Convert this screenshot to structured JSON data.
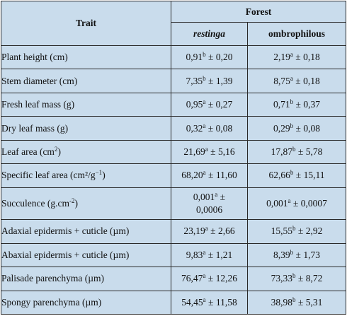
{
  "header": {
    "trait": "Trait",
    "forest": "Forest",
    "restinga": "restinga",
    "ombrophilous": "ombrophilous"
  },
  "rows": [
    {
      "trait": {
        "pre": "Plant height (cm)",
        "sup": "",
        "post": ""
      },
      "restinga": {
        "val": "0,91",
        "sup": "b",
        "err": " ± 0,20"
      },
      "ombrophilous": {
        "val": "2,19",
        "sup": "a",
        "err": " ± 0,18"
      }
    },
    {
      "trait": {
        "pre": "Stem diameter (cm)",
        "sup": "",
        "post": ""
      },
      "restinga": {
        "val": "7,35",
        "sup": "b",
        "err": " ± 1,39"
      },
      "ombrophilous": {
        "val": "8,75",
        "sup": "a",
        "err": " ± 0,18"
      }
    },
    {
      "trait": {
        "pre": "Fresh leaf mass (g)",
        "sup": "",
        "post": ""
      },
      "restinga": {
        "val": "0,95",
        "sup": "a",
        "err": " ± 0,27"
      },
      "ombrophilous": {
        "val": "0,71",
        "sup": "b",
        "err": " ± 0,37"
      }
    },
    {
      "trait": {
        "pre": "Dry leaf mass (g)",
        "sup": "",
        "post": ""
      },
      "restinga": {
        "val": "0,32",
        "sup": "a",
        "err": " ± 0,08"
      },
      "ombrophilous": {
        "val": "0,29",
        "sup": "b",
        "err": " ± 0,08"
      }
    },
    {
      "trait": {
        "pre": "Leaf area (cm",
        "sup": "2",
        "post": ")"
      },
      "restinga": {
        "val": "21,69",
        "sup": "a",
        "err": " ± 5,16"
      },
      "ombrophilous": {
        "val": "17,87",
        "sup": "b",
        "err": " ± 5,78"
      }
    },
    {
      "trait": {
        "pre": "Specific leaf area (cm²/g",
        "sup": "−1",
        "post": ")"
      },
      "restinga": {
        "val": "68,20",
        "sup": "a",
        "err": " ± 11,60"
      },
      "ombrophilous": {
        "val": "62,66",
        "sup": "b",
        "err": " ± 15,11"
      }
    },
    {
      "trait": {
        "pre": "Succulence (g.cm",
        "sup": "-2",
        "post": ")"
      },
      "restinga": {
        "val": "0,001",
        "sup": "a",
        "err": " ±",
        "line2": "0,0006"
      },
      "ombrophilous": {
        "val": "0,001",
        "sup": "a",
        "err": " ± 0,0007"
      }
    },
    {
      "trait": {
        "pre": "Adaxial epidermis + cuticle (µm)",
        "sup": "",
        "post": ""
      },
      "restinga": {
        "val": "23,19",
        "sup": "a",
        "err": " ± 2,66"
      },
      "ombrophilous": {
        "val": "15,55",
        "sup": "b",
        "err": " ± 2,92"
      }
    },
    {
      "trait": {
        "pre": "Abaxial epidermis + cuticle (µm)",
        "sup": "",
        "post": ""
      },
      "restinga": {
        "val": "9,83",
        "sup": "a",
        "err": " ± 1,21"
      },
      "ombrophilous": {
        "val": "8,39",
        "sup": "b",
        "err": " ± 1,73"
      }
    },
    {
      "trait": {
        "pre": "Palisade parenchyma (µm)",
        "sup": "",
        "post": ""
      },
      "restinga": {
        "val": "76,47",
        "sup": "a",
        "err": " ± 12,26"
      },
      "ombrophilous": {
        "val": "73,33",
        "sup": "b",
        "err": " ± 8,72"
      }
    },
    {
      "trait": {
        "pre": "Spongy parenchyma (µm)",
        "sup": "",
        "post": ""
      },
      "restinga": {
        "val": "54,45",
        "sup": "a",
        "err": " ± 11,58"
      },
      "ombrophilous": {
        "val": "38,98",
        "sup": "b",
        "err": " ± 5,31"
      }
    }
  ]
}
